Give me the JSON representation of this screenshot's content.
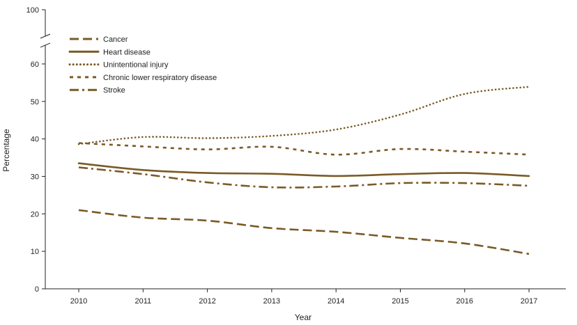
{
  "chart_data": {
    "type": "line",
    "title": "",
    "xlabel": "Year",
    "ylabel": "Percentage",
    "x": [
      2010,
      2011,
      2012,
      2013,
      2014,
      2015,
      2016,
      2017
    ],
    "x_tick_labels": [
      "2010",
      "2011",
      "2012",
      "2013",
      "2014",
      "2015",
      "2016",
      "2017"
    ],
    "y_tick_labels": [
      "0",
      "10",
      "20",
      "30",
      "40",
      "50",
      "60",
      "100"
    ],
    "y_ticks_lower": [
      0,
      10,
      20,
      30,
      40,
      50,
      60
    ],
    "y_tick_upper": 100,
    "ylim": [
      0,
      100
    ],
    "axis_break": {
      "from": 65,
      "to": 100
    },
    "grid": false,
    "legend_position": "top-left",
    "series": [
      {
        "name": "Cancer",
        "style": "long-dash",
        "values": [
          21.0,
          19.0,
          18.2,
          16.2,
          15.2,
          13.6,
          12.1,
          9.3
        ]
      },
      {
        "name": "Heart disease",
        "style": "solid",
        "values": [
          33.5,
          31.7,
          30.9,
          30.7,
          30.1,
          30.6,
          30.9,
          30.1
        ]
      },
      {
        "name": "Unintentional injury",
        "style": "dotted",
        "values": [
          38.6,
          40.5,
          40.2,
          40.8,
          42.5,
          46.5,
          52.0,
          53.9
        ]
      },
      {
        "name": "Chronic lower respiratory disease",
        "style": "short-dash",
        "values": [
          38.9,
          38.0,
          37.2,
          37.9,
          35.8,
          37.3,
          36.6,
          35.8
        ]
      },
      {
        "name": "Stroke",
        "style": "dash-dot",
        "values": [
          32.4,
          30.6,
          28.4,
          27.1,
          27.3,
          28.2,
          28.2,
          27.5
        ]
      }
    ],
    "colors": {
      "line": "#7a5a26",
      "axis": "#222222"
    }
  }
}
